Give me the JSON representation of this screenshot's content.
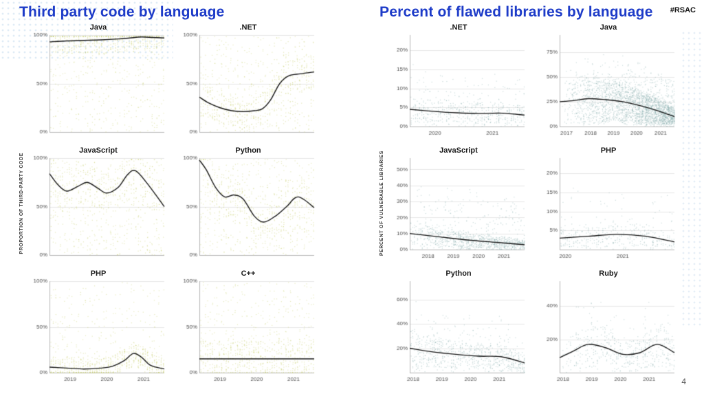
{
  "header": {
    "hashtag": "#RSAC"
  },
  "footer": {
    "page_number": "4"
  },
  "colors": {
    "title_blue": "#1d3bc8",
    "trend": "#141414",
    "grid": "#e6e6e6",
    "axis": "#b5b5b5",
    "tick_text": "#4a4a4a",
    "facet_title": "#1a1a1a",
    "left_dots": "#c6cc66",
    "right_dots": "#88aeac",
    "decor_dots": "#c7dcee"
  },
  "chart_data": [
    {
      "panel": "left",
      "type": "scatter",
      "title": "Third party code by language",
      "ylabel": "PROPORTION OF THIRD-PARTY CODE",
      "dot_color": "#c6cc66",
      "grid": true,
      "legend_position": "none",
      "subplots": [
        {
          "name": "Java",
          "ylim": [
            0,
            100
          ],
          "yticks": [
            0,
            50,
            100
          ],
          "ytick_labels": [
            "0%",
            "50%",
            "100%"
          ],
          "xticks": [],
          "trend": {
            "x": [
              0,
              0.15,
              0.3,
              0.45,
              0.6,
              0.7,
              0.8,
              0.9,
              1
            ],
            "y": [
              93,
              94,
              94.5,
              95,
              96,
              97,
              98,
              97.5,
              97
            ]
          },
          "scatter": {
            "mode": "stripes",
            "columns": 50,
            "per_column": 17,
            "near_trend_ratio": 0.6,
            "near_spread": 14
          }
        },
        {
          "name": ".NET",
          "ylim": [
            0,
            100
          ],
          "yticks": [
            0,
            50,
            100
          ],
          "ytick_labels": [
            "0%",
            "50%",
            "100%"
          ],
          "xticks": [],
          "trend": {
            "x": [
              0,
              0.08,
              0.18,
              0.28,
              0.38,
              0.48,
              0.55,
              0.62,
              0.7,
              0.78,
              0.88,
              1
            ],
            "y": [
              36,
              30,
              25,
              22,
              21,
              22,
              24,
              33,
              50,
              58,
              60,
              62
            ]
          },
          "scatter": {
            "mode": "stripes",
            "columns": 50,
            "per_column": 16,
            "near_trend_ratio": 0.45,
            "near_spread": 18
          }
        },
        {
          "name": "JavaScript",
          "ylim": [
            0,
            100
          ],
          "yticks": [
            0,
            50,
            100
          ],
          "ytick_labels": [
            "0%",
            "50%",
            "100%"
          ],
          "xticks": [],
          "trend": {
            "x": [
              0,
              0.07,
              0.15,
              0.25,
              0.33,
              0.42,
              0.5,
              0.6,
              0.68,
              0.75,
              0.85,
              1
            ],
            "y": [
              84,
              73,
              66,
              71,
              75,
              69,
              64,
              70,
              83,
              87,
              74,
              50
            ]
          },
          "scatter": {
            "mode": "stripes",
            "columns": 50,
            "per_column": 16,
            "near_trend_ratio": 0.4,
            "near_spread": 22
          }
        },
        {
          "name": "Python",
          "ylim": [
            0,
            100
          ],
          "yticks": [
            0,
            50,
            100
          ],
          "ytick_labels": [
            "0%",
            "50%",
            "100%"
          ],
          "xticks": [],
          "trend": {
            "x": [
              0,
              0.06,
              0.14,
              0.22,
              0.3,
              0.38,
              0.48,
              0.56,
              0.66,
              0.76,
              0.86,
              1
            ],
            "y": [
              98,
              88,
              70,
              60,
              62,
              58,
              40,
              34,
              40,
              50,
              60,
              49
            ]
          },
          "scatter": {
            "mode": "stripes",
            "columns": 50,
            "per_column": 16,
            "near_trend_ratio": 0.4,
            "near_spread": 22
          }
        },
        {
          "name": "PHP",
          "ylim": [
            0,
            100
          ],
          "yticks": [
            0,
            50,
            100
          ],
          "ytick_labels": [
            "0%",
            "50%",
            "100%"
          ],
          "xticks": [
            {
              "label": "2019",
              "pos": 0.18
            },
            {
              "label": "2020",
              "pos": 0.5
            },
            {
              "label": "2021",
              "pos": 0.82
            }
          ],
          "trend": {
            "x": [
              0,
              0.15,
              0.3,
              0.45,
              0.55,
              0.65,
              0.73,
              0.8,
              0.88,
              1
            ],
            "y": [
              6,
              5,
              4,
              5,
              7,
              13,
              21,
              17,
              8,
              4
            ]
          },
          "scatter": {
            "mode": "stripes",
            "columns": 50,
            "per_column": 16,
            "near_trend_ratio": 0.7,
            "near_spread": 13
          }
        },
        {
          "name": "C++",
          "ylim": [
            0,
            100
          ],
          "yticks": [
            0,
            50,
            100
          ],
          "ytick_labels": [
            "0%",
            "50%",
            "100%"
          ],
          "xticks": [
            {
              "label": "2019",
              "pos": 0.18
            },
            {
              "label": "2020",
              "pos": 0.5
            },
            {
              "label": "2021",
              "pos": 0.82
            }
          ],
          "trend": {
            "x": [
              0,
              0.5,
              1
            ],
            "y": [
              15,
              15,
              15
            ]
          },
          "scatter": {
            "mode": "stripes",
            "columns": 50,
            "per_column": 16,
            "near_trend_ratio": 0.6,
            "near_spread": 20
          }
        }
      ]
    },
    {
      "panel": "right",
      "type": "scatter",
      "title": "Percent of flawed libraries by language",
      "ylabel": "PERCENT OF VULNERABLE LIBRARIES",
      "dot_color": "#88aeac",
      "grid": true,
      "legend_position": "none",
      "subplots": [
        {
          "name": ".NET",
          "ylim": [
            0,
            24
          ],
          "yticks": [
            0,
            5,
            10,
            15,
            20
          ],
          "ytick_labels": [
            "0%",
            "5%",
            "10%",
            "15%",
            "20%"
          ],
          "xticks": [
            {
              "label": "2020",
              "pos": 0.22
            },
            {
              "label": "2021",
              "pos": 0.72
            }
          ],
          "trend": {
            "x": [
              0,
              0.2,
              0.4,
              0.6,
              0.8,
              1
            ],
            "y": [
              4.5,
              4,
              3.6,
              3.4,
              3.5,
              3
            ]
          },
          "scatter": {
            "mode": "trend",
            "count": 550,
            "spread": 3,
            "tail": 9,
            "columns": 55,
            "x_bias": 1
          }
        },
        {
          "name": "Java",
          "ylim": [
            0,
            92
          ],
          "yticks": [
            0,
            25,
            50,
            75
          ],
          "ytick_labels": [
            "0%",
            "25%",
            "50%",
            "75%"
          ],
          "xticks": [
            {
              "label": "2017",
              "pos": 0.06
            },
            {
              "label": "2018",
              "pos": 0.27
            },
            {
              "label": "2019",
              "pos": 0.47
            },
            {
              "label": "2020",
              "pos": 0.67
            },
            {
              "label": "2021",
              "pos": 0.88
            }
          ],
          "trend": {
            "x": [
              0,
              0.12,
              0.25,
              0.4,
              0.55,
              0.7,
              0.85,
              1
            ],
            "y": [
              25,
              26,
              28,
              27,
              25,
              21,
              16,
              10
            ]
          },
          "scatter": {
            "mode": "trend",
            "count": 2600,
            "spread": 10,
            "tail": 32,
            "columns": 80,
            "x_bias": 0.55
          }
        },
        {
          "name": "JavaScript",
          "ylim": [
            0,
            57
          ],
          "yticks": [
            0,
            10,
            20,
            30,
            40,
            50
          ],
          "ytick_labels": [
            "0%",
            "10%",
            "20%",
            "30%",
            "40%",
            "50%"
          ],
          "xticks": [
            {
              "label": "2018",
              "pos": 0.16
            },
            {
              "label": "2019",
              "pos": 0.38
            },
            {
              "label": "2020",
              "pos": 0.6
            },
            {
              "label": "2021",
              "pos": 0.82
            }
          ],
          "trend": {
            "x": [
              0,
              0.25,
              0.5,
              0.75,
              1
            ],
            "y": [
              10,
              8,
              6,
              4.5,
              3
            ]
          },
          "scatter": {
            "mode": "trend",
            "count": 1000,
            "spread": 6,
            "tail": 28,
            "columns": 70,
            "x_bias": 0.75
          }
        },
        {
          "name": "PHP",
          "ylim": [
            0,
            24
          ],
          "yticks": [
            5,
            10,
            15,
            20
          ],
          "ytick_labels": [
            "5%",
            "10%",
            "15%",
            "20%"
          ],
          "xticks": [
            {
              "label": "2020",
              "pos": 0.05
            },
            {
              "label": "2021",
              "pos": 0.55
            }
          ],
          "trend": {
            "x": [
              0,
              0.25,
              0.5,
              0.75,
              1
            ],
            "y": [
              3,
              3.5,
              4,
              3.5,
              2
            ]
          },
          "scatter": {
            "mode": "trend",
            "count": 380,
            "spread": 3,
            "tail": 11,
            "columns": 55,
            "x_bias": 1
          }
        },
        {
          "name": "Python",
          "ylim": [
            0,
            75
          ],
          "yticks": [
            20,
            40,
            60
          ],
          "ytick_labels": [
            "20%",
            "40%",
            "60%"
          ],
          "xticks": [
            {
              "label": "2018",
              "pos": 0.03
            },
            {
              "label": "2019",
              "pos": 0.28
            },
            {
              "label": "2020",
              "pos": 0.53
            },
            {
              "label": "2021",
              "pos": 0.78
            }
          ],
          "trend": {
            "x": [
              0,
              0.2,
              0.4,
              0.6,
              0.8,
              1
            ],
            "y": [
              20,
              17,
              15,
              13.5,
              13,
              8
            ]
          },
          "scatter": {
            "mode": "trend",
            "count": 750,
            "spread": 7,
            "tail": 26,
            "columns": 65,
            "x_bias": 0.9
          }
        },
        {
          "name": "Ruby",
          "ylim": [
            0,
            55
          ],
          "yticks": [
            20,
            40
          ],
          "ytick_labels": [
            "20%",
            "40%"
          ],
          "xticks": [
            {
              "label": "2018",
              "pos": 0.03
            },
            {
              "label": "2019",
              "pos": 0.28
            },
            {
              "label": "2020",
              "pos": 0.53
            },
            {
              "label": "2021",
              "pos": 0.78
            }
          ],
          "trend": {
            "x": [
              0,
              0.12,
              0.25,
              0.4,
              0.55,
              0.7,
              0.85,
              1
            ],
            "y": [
              9,
              13,
              17,
              15,
              11,
              12,
              17,
              12
            ]
          },
          "scatter": {
            "mode": "trend",
            "count": 520,
            "spread": 7,
            "tail": 20,
            "columns": 60,
            "x_bias": 0.8
          }
        }
      ]
    }
  ]
}
